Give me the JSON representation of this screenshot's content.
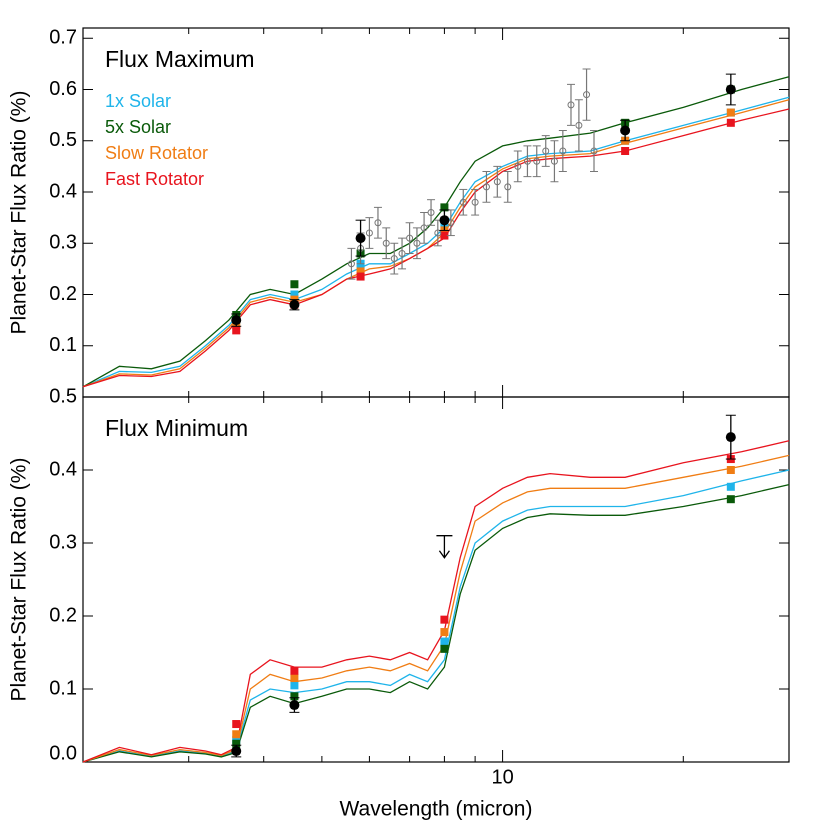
{
  "chart_data": [
    {
      "type": "line",
      "title": "Flux Maximum",
      "ylabel": "Planet-Star Flux Ratio (%)",
      "xlog": true,
      "xlim": [
        2,
        30
      ],
      "minor_xticks": [
        3,
        4,
        5,
        6,
        7,
        8,
        9,
        20
      ],
      "ylim": [
        0,
        0.72
      ],
      "yticks": [
        0.1,
        0.2,
        0.3,
        0.4,
        0.5,
        0.6,
        0.7
      ],
      "x": [
        2.0,
        2.3,
        2.6,
        2.9,
        3.2,
        3.5,
        3.8,
        4.1,
        4.5,
        5.0,
        5.5,
        6.0,
        6.5,
        7.0,
        7.5,
        8.0,
        8.5,
        9.0,
        10,
        11,
        12,
        14,
        16,
        20,
        25,
        30
      ],
      "band_x": [
        3.6,
        4.5,
        5.8,
        8.0,
        16,
        24
      ],
      "series": [
        {
          "name": "1x Solar",
          "color": "#1fb4ea",
          "values": [
            0.02,
            0.05,
            0.048,
            0.06,
            0.1,
            0.14,
            0.19,
            0.2,
            0.19,
            0.21,
            0.24,
            0.26,
            0.26,
            0.28,
            0.3,
            0.33,
            0.38,
            0.42,
            0.45,
            0.47,
            0.475,
            0.48,
            0.5,
            0.53,
            0.56,
            0.585
          ],
          "band_values": [
            0.15,
            0.2,
            0.26,
            0.34,
            0.5,
            0.555
          ]
        },
        {
          "name": "5x Solar",
          "color": "#0a5a0a",
          "values": [
            0.02,
            0.06,
            0.055,
            0.07,
            0.11,
            0.15,
            0.2,
            0.21,
            0.2,
            0.23,
            0.26,
            0.28,
            0.28,
            0.3,
            0.33,
            0.37,
            0.42,
            0.46,
            0.49,
            0.5,
            0.505,
            0.515,
            0.535,
            0.565,
            0.6,
            0.625
          ],
          "band_values": [
            0.16,
            0.22,
            0.28,
            0.37,
            0.535,
            0.6
          ]
        },
        {
          "name": "Slow Rotator",
          "color": "#f07d14",
          "values": [
            0.02,
            0.045,
            0.043,
            0.055,
            0.095,
            0.135,
            0.185,
            0.195,
            0.185,
            0.2,
            0.23,
            0.25,
            0.255,
            0.27,
            0.29,
            0.32,
            0.37,
            0.41,
            0.445,
            0.465,
            0.47,
            0.475,
            0.495,
            0.525,
            0.555,
            0.58
          ],
          "band_values": [
            0.14,
            0.19,
            0.245,
            0.325,
            0.5,
            0.555
          ]
        },
        {
          "name": "Fast Rotator",
          "color": "#e8141e",
          "values": [
            0.02,
            0.042,
            0.04,
            0.05,
            0.09,
            0.13,
            0.18,
            0.19,
            0.18,
            0.2,
            0.23,
            0.24,
            0.25,
            0.27,
            0.29,
            0.31,
            0.36,
            0.4,
            0.44,
            0.46,
            0.465,
            0.47,
            0.48,
            0.51,
            0.54,
            0.562
          ],
          "band_values": [
            0.13,
            0.18,
            0.235,
            0.315,
            0.48,
            0.535
          ]
        }
      ],
      "observed": {
        "x": [
          3.6,
          4.5,
          5.8,
          8.0,
          16,
          24
        ],
        "values": [
          0.15,
          0.18,
          0.31,
          0.345,
          0.52,
          0.6
        ],
        "errors": [
          0.012,
          0.01,
          0.035,
          0.02,
          0.02,
          0.03
        ]
      },
      "spectrum": {
        "x": [
          5.6,
          5.8,
          6.0,
          6.2,
          6.4,
          6.6,
          6.8,
          7.0,
          7.2,
          7.4,
          7.6,
          7.8,
          8.2,
          8.6,
          9.0,
          9.4,
          9.8,
          10.2,
          10.6,
          11.0,
          11.4,
          11.8,
          12.2,
          12.6,
          13.0,
          13.4,
          13.8,
          14.2
        ],
        "values": [
          0.26,
          0.29,
          0.32,
          0.34,
          0.3,
          0.27,
          0.28,
          0.31,
          0.3,
          0.33,
          0.36,
          0.32,
          0.34,
          0.38,
          0.38,
          0.41,
          0.42,
          0.41,
          0.45,
          0.46,
          0.46,
          0.48,
          0.46,
          0.48,
          0.57,
          0.53,
          0.59,
          0.48
        ],
        "errors": [
          0.03,
          0.03,
          0.03,
          0.03,
          0.03,
          0.03,
          0.03,
          0.03,
          0.03,
          0.03,
          0.025,
          0.025,
          0.025,
          0.025,
          0.025,
          0.03,
          0.03,
          0.03,
          0.03,
          0.03,
          0.03,
          0.03,
          0.04,
          0.04,
          0.04,
          0.05,
          0.05,
          0.04
        ]
      }
    },
    {
      "type": "line",
      "title": "Flux Minimum",
      "ylabel": "Planet-Star Flux Ratio (%)",
      "xlabel": "Wavelength (micron)",
      "xlog": true,
      "xlim": [
        2,
        30
      ],
      "xticks": [
        10
      ],
      "minor_xticks": [
        3,
        4,
        5,
        6,
        7,
        8,
        9,
        20
      ],
      "ylim": [
        0,
        0.5
      ],
      "yticks": [
        {
          "value": 0,
          "label": "0.0"
        },
        0.1,
        0.2,
        0.3,
        0.4,
        0.5
      ],
      "x": [
        2.0,
        2.3,
        2.6,
        2.9,
        3.2,
        3.4,
        3.6,
        3.8,
        4.1,
        4.5,
        5.0,
        5.5,
        6.0,
        6.5,
        7.0,
        7.5,
        8.0,
        8.5,
        9.0,
        10,
        11,
        12,
        14,
        16,
        20,
        25,
        30
      ],
      "band_x": [
        3.6,
        4.5,
        8.0,
        24
      ],
      "series": [
        {
          "color": "#1fb4ea",
          "values": [
            0.0,
            0.015,
            0.008,
            0.015,
            0.012,
            0.008,
            0.015,
            0.085,
            0.1,
            0.095,
            0.1,
            0.11,
            0.11,
            0.105,
            0.12,
            0.11,
            0.14,
            0.24,
            0.3,
            0.33,
            0.345,
            0.35,
            0.35,
            0.35,
            0.365,
            0.385,
            0.4
          ],
          "band_values": [
            0.03,
            0.105,
            0.165,
            0.377
          ]
        },
        {
          "color": "#0a5a0a",
          "values": [
            0.0,
            0.014,
            0.007,
            0.014,
            0.011,
            0.007,
            0.013,
            0.075,
            0.09,
            0.08,
            0.09,
            0.1,
            0.1,
            0.095,
            0.11,
            0.1,
            0.13,
            0.23,
            0.29,
            0.32,
            0.335,
            0.34,
            0.338,
            0.338,
            0.35,
            0.365,
            0.38
          ],
          "band_values": [
            0.025,
            0.09,
            0.155,
            0.36
          ]
        },
        {
          "color": "#f07d14",
          "values": [
            0.0,
            0.017,
            0.009,
            0.017,
            0.013,
            0.009,
            0.017,
            0.1,
            0.12,
            0.11,
            0.115,
            0.125,
            0.13,
            0.125,
            0.135,
            0.125,
            0.16,
            0.26,
            0.33,
            0.355,
            0.37,
            0.375,
            0.375,
            0.375,
            0.39,
            0.405,
            0.42
          ],
          "band_values": [
            0.038,
            0.115,
            0.178,
            0.4
          ]
        },
        {
          "color": "#e8141e",
          "values": [
            0.0,
            0.02,
            0.01,
            0.02,
            0.015,
            0.01,
            0.02,
            0.12,
            0.14,
            0.13,
            0.13,
            0.14,
            0.145,
            0.14,
            0.15,
            0.14,
            0.18,
            0.28,
            0.35,
            0.375,
            0.39,
            0.395,
            0.39,
            0.39,
            0.41,
            0.425,
            0.44
          ],
          "band_values": [
            0.052,
            0.125,
            0.195,
            0.415
          ]
        }
      ],
      "observed": {
        "x": [
          3.6,
          4.5,
          24
        ],
        "values": [
          0.015,
          0.078,
          0.445
        ],
        "errors": [
          0.008,
          0.01,
          0.03
        ]
      },
      "upper_limit": {
        "x": 8.0,
        "value": 0.31
      }
    }
  ]
}
